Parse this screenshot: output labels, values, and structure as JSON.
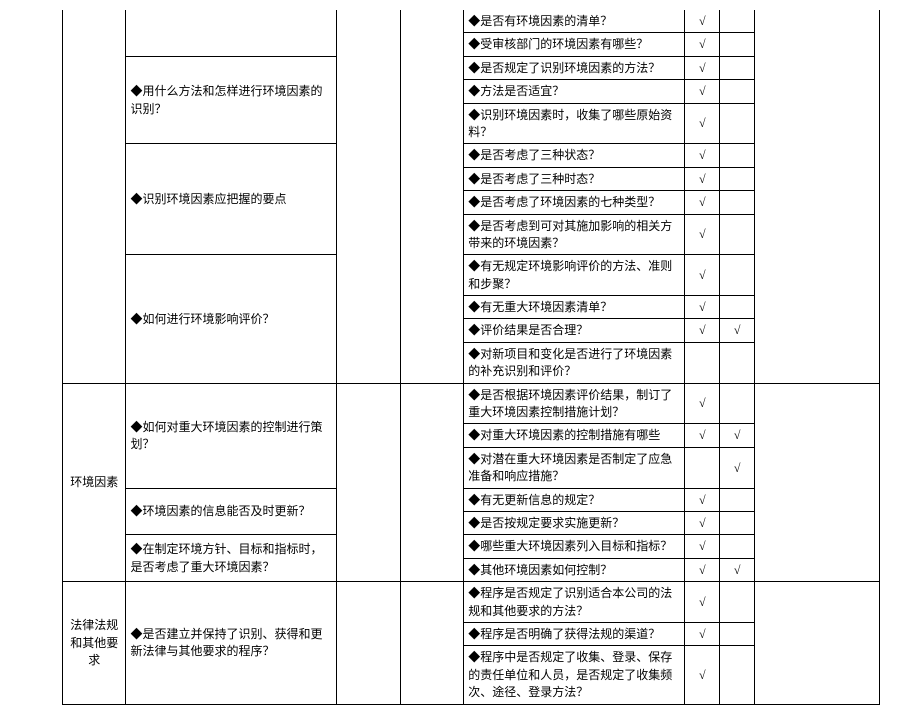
{
  "check": "√",
  "sections": {
    "A": {
      "label": "",
      "q1": {
        "label": "",
        "items": [
          {
            "t": "◆是否有环境因素的清单？",
            "m1": "√",
            "m2": ""
          },
          {
            "t": "◆受审核部门的环境因素有哪些？",
            "m1": "√",
            "m2": ""
          }
        ]
      },
      "q2": {
        "label": "◆用什么方法和怎样进行环境因素的识别？",
        "items": [
          {
            "t": "◆是否规定了识别环境因素的方法？",
            "m1": "√",
            "m2": ""
          },
          {
            "t": "◆方法是否适宜？",
            "m1": "√",
            "m2": ""
          },
          {
            "t": "◆识别环境因素时，收集了哪些原始资料？",
            "m1": "√",
            "m2": ""
          }
        ]
      },
      "q3": {
        "label": "◆识别环境因素应把握的要点",
        "items": [
          {
            "t": "◆是否考虑了三种状态？",
            "m1": "√",
            "m2": ""
          },
          {
            "t": "◆是否考虑了三种时态？",
            "m1": "√",
            "m2": ""
          },
          {
            "t": "◆是否考虑了环境因素的七种类型？",
            "m1": "√",
            "m2": ""
          },
          {
            "t": "◆是否考虑到可对其施加影响的相关方带来的环境因素？",
            "m1": "√",
            "m2": ""
          }
        ]
      },
      "q4": {
        "label": "◆如何进行环境影响评价？",
        "items": [
          {
            "t": "◆有无规定环境影响评价的方法、准则和步聚？",
            "m1": "√",
            "m2": ""
          },
          {
            "t": "◆有无重大环境因素清单？",
            "m1": "√",
            "m2": ""
          },
          {
            "t": "◆评价结果是否合理？",
            "m1": "√",
            "m2": "√"
          },
          {
            "t": "◆对新项目和变化是否进行了环境因素的补充识别和评价？",
            "m1": "",
            "m2": ""
          }
        ]
      }
    },
    "B": {
      "label": "环境因素",
      "q1": {
        "label": "◆如何对重大环境因素的控制进行策划？",
        "items": [
          {
            "t": "◆是否根据环境因素评价结果，制订了重大环境因素控制措施计划？",
            "m1": "√",
            "m2": ""
          },
          {
            "t": "◆对重大环境因素的控制措施有哪些",
            "m1": "√",
            "m2": "√"
          },
          {
            "t": "◆对潜在重大环境因素是否制定了应急准备和响应措施？",
            "m1": "",
            "m2": "√"
          }
        ]
      },
      "q2": {
        "label": "◆环境因素的信息能否及时更新？",
        "items": [
          {
            "t": "◆有无更新信息的规定？",
            "m1": "√",
            "m2": ""
          },
          {
            "t": "◆是否按规定要求实施更新？",
            "m1": "√",
            "m2": ""
          }
        ]
      },
      "q3": {
        "label": "◆在制定环境方针、目标和指标时，是否考虑了重大环境因素？",
        "items": [
          {
            "t": "◆哪些重大环境因素列入目标和指标？",
            "m1": "√",
            "m2": ""
          },
          {
            "t": "◆其他环境因素如何控制？",
            "m1": "√",
            "m2": "√"
          }
        ]
      }
    },
    "C": {
      "label": "法律法规和其他要求",
      "q1": {
        "label": "◆是否建立并保持了识别、获得和更新法律与其他要求的程序？",
        "items": [
          {
            "t": "◆程序是否规定了识别适合本公司的法规和其他要求的方法？",
            "m1": "√",
            "m2": ""
          },
          {
            "t": "◆程序是否明确了获得法规的渠道？",
            "m1": "√",
            "m2": ""
          },
          {
            "t": "◆程序中是否规定了收集、登录、保存的责任单位和人员，是否规定了收集频次、途径、登录方法？",
            "m1": "√",
            "m2": ""
          }
        ]
      }
    }
  }
}
